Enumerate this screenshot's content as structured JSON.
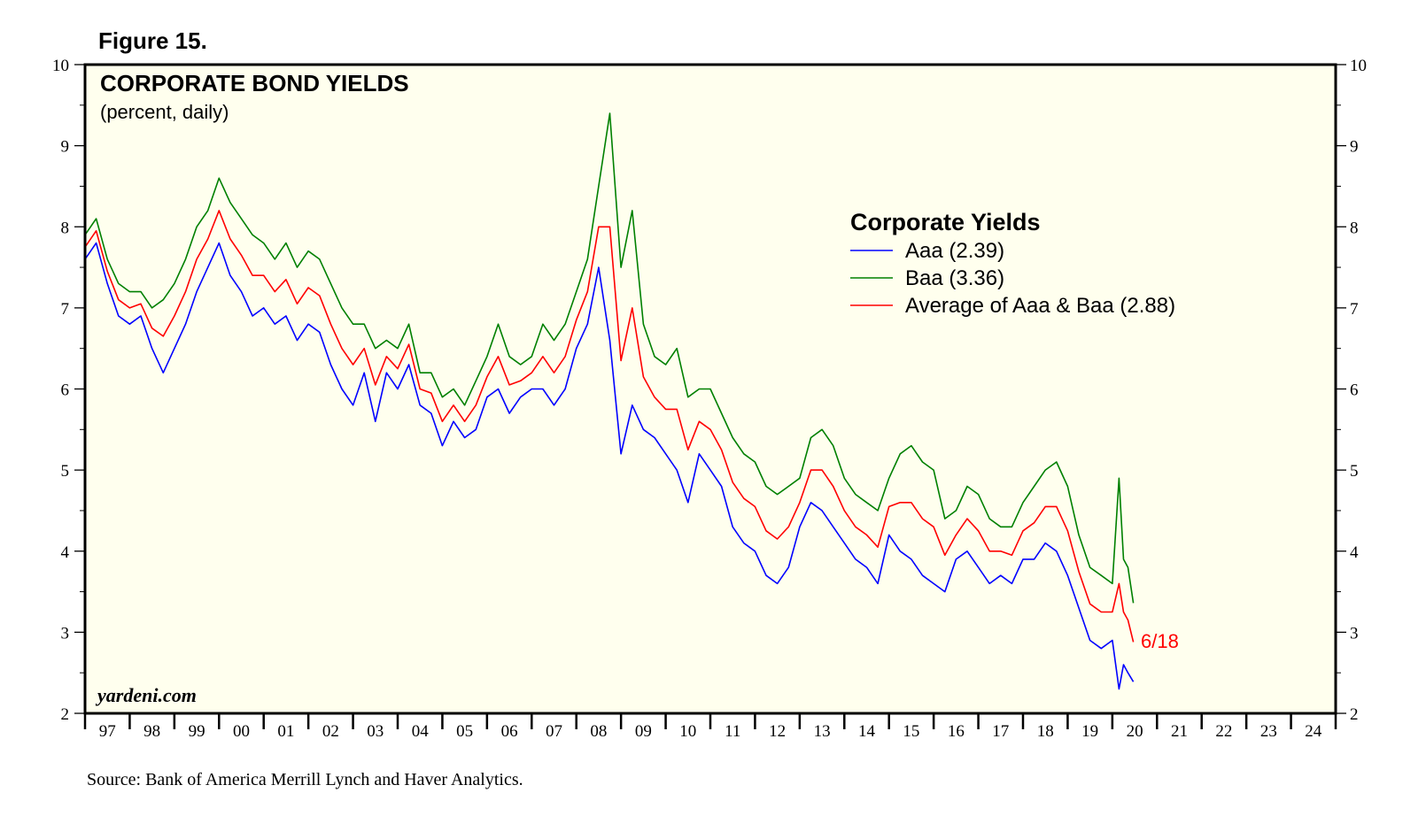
{
  "figure_label": "Figure 15.",
  "source": "Source: Bank of America Merrill Lynch and Haver Analytics.",
  "watermark": "yardeni.com",
  "colors": {
    "background": "#ffffee",
    "aaa": "#0000ff",
    "baa": "#008000",
    "avg": "#ff0000",
    "axis": "#000000"
  },
  "chart_data": {
    "type": "line",
    "title": "CORPORATE BOND YIELDS",
    "subtitle": "(percent, daily)",
    "xlabel": "",
    "ylabel": "",
    "ylim": [
      2,
      10
    ],
    "xlim": [
      1997,
      2025
    ],
    "y_ticks": [
      2,
      3,
      4,
      5,
      6,
      7,
      8,
      9,
      10
    ],
    "x_tick_labels": [
      "97",
      "98",
      "99",
      "00",
      "01",
      "02",
      "03",
      "04",
      "05",
      "06",
      "07",
      "08",
      "09",
      "10",
      "11",
      "12",
      "13",
      "14",
      "15",
      "16",
      "17",
      "18",
      "19",
      "20",
      "21",
      "22",
      "23",
      "24"
    ],
    "legend": {
      "title": "Corporate Yields",
      "placement": "top-right"
    },
    "end_label": "6/18",
    "series": [
      {
        "name": "Aaa (2.39)",
        "color": "#0000ff",
        "x": [
          1997.0,
          1997.25,
          1997.5,
          1997.75,
          1998.0,
          1998.25,
          1998.5,
          1998.75,
          1999.0,
          1999.25,
          1999.5,
          1999.75,
          2000.0,
          2000.25,
          2000.5,
          2000.75,
          2001.0,
          2001.25,
          2001.5,
          2001.75,
          2002.0,
          2002.25,
          2002.5,
          2002.75,
          2003.0,
          2003.25,
          2003.5,
          2003.75,
          2004.0,
          2004.25,
          2004.5,
          2004.75,
          2005.0,
          2005.25,
          2005.5,
          2005.75,
          2006.0,
          2006.25,
          2006.5,
          2006.75,
          2007.0,
          2007.25,
          2007.5,
          2007.75,
          2008.0,
          2008.25,
          2008.5,
          2008.75,
          2009.0,
          2009.25,
          2009.5,
          2009.75,
          2010.0,
          2010.25,
          2010.5,
          2010.75,
          2011.0,
          2011.25,
          2011.5,
          2011.75,
          2012.0,
          2012.25,
          2012.5,
          2012.75,
          2013.0,
          2013.25,
          2013.5,
          2013.75,
          2014.0,
          2014.25,
          2014.5,
          2014.75,
          2015.0,
          2015.25,
          2015.5,
          2015.75,
          2016.0,
          2016.25,
          2016.5,
          2016.75,
          2017.0,
          2017.25,
          2017.5,
          2017.75,
          2018.0,
          2018.25,
          2018.5,
          2018.75,
          2019.0,
          2019.25,
          2019.5,
          2019.75,
          2020.0,
          2020.15,
          2020.25,
          2020.35,
          2020.47
        ],
        "values": [
          7.6,
          7.8,
          7.3,
          6.9,
          6.8,
          6.9,
          6.5,
          6.2,
          6.5,
          6.8,
          7.2,
          7.5,
          7.8,
          7.4,
          7.2,
          6.9,
          7.0,
          6.8,
          6.9,
          6.6,
          6.8,
          6.7,
          6.3,
          6.0,
          5.8,
          6.2,
          5.6,
          6.2,
          6.0,
          6.3,
          5.8,
          5.7,
          5.3,
          5.6,
          5.4,
          5.5,
          5.9,
          6.0,
          5.7,
          5.9,
          6.0,
          6.0,
          5.8,
          6.0,
          6.5,
          6.8,
          7.5,
          6.6,
          5.2,
          5.8,
          5.5,
          5.4,
          5.2,
          5.0,
          4.6,
          5.2,
          5.0,
          4.8,
          4.3,
          4.1,
          4.0,
          3.7,
          3.6,
          3.8,
          4.3,
          4.6,
          4.5,
          4.3,
          4.1,
          3.9,
          3.8,
          3.6,
          4.2,
          4.0,
          3.9,
          3.7,
          3.6,
          3.5,
          3.9,
          4.0,
          3.8,
          3.6,
          3.7,
          3.6,
          3.9,
          3.9,
          4.1,
          4.0,
          3.7,
          3.3,
          2.9,
          2.8,
          2.9,
          2.3,
          2.6,
          2.5,
          2.39
        ]
      },
      {
        "name": "Baa (3.36)",
        "color": "#008000",
        "x": [
          1997.0,
          1997.25,
          1997.5,
          1997.75,
          1998.0,
          1998.25,
          1998.5,
          1998.75,
          1999.0,
          1999.25,
          1999.5,
          1999.75,
          2000.0,
          2000.25,
          2000.5,
          2000.75,
          2001.0,
          2001.25,
          2001.5,
          2001.75,
          2002.0,
          2002.25,
          2002.5,
          2002.75,
          2003.0,
          2003.25,
          2003.5,
          2003.75,
          2004.0,
          2004.25,
          2004.5,
          2004.75,
          2005.0,
          2005.25,
          2005.5,
          2005.75,
          2006.0,
          2006.25,
          2006.5,
          2006.75,
          2007.0,
          2007.25,
          2007.5,
          2007.75,
          2008.0,
          2008.25,
          2008.5,
          2008.75,
          2009.0,
          2009.25,
          2009.5,
          2009.75,
          2010.0,
          2010.25,
          2010.5,
          2010.75,
          2011.0,
          2011.25,
          2011.5,
          2011.75,
          2012.0,
          2012.25,
          2012.5,
          2012.75,
          2013.0,
          2013.25,
          2013.5,
          2013.75,
          2014.0,
          2014.25,
          2014.5,
          2014.75,
          2015.0,
          2015.25,
          2015.5,
          2015.75,
          2016.0,
          2016.25,
          2016.5,
          2016.75,
          2017.0,
          2017.25,
          2017.5,
          2017.75,
          2018.0,
          2018.25,
          2018.5,
          2018.75,
          2019.0,
          2019.25,
          2019.5,
          2019.75,
          2020.0,
          2020.15,
          2020.25,
          2020.35,
          2020.47
        ],
        "values": [
          7.9,
          8.1,
          7.6,
          7.3,
          7.2,
          7.2,
          7.0,
          7.1,
          7.3,
          7.6,
          8.0,
          8.2,
          8.6,
          8.3,
          8.1,
          7.9,
          7.8,
          7.6,
          7.8,
          7.5,
          7.7,
          7.6,
          7.3,
          7.0,
          6.8,
          6.8,
          6.5,
          6.6,
          6.5,
          6.8,
          6.2,
          6.2,
          5.9,
          6.0,
          5.8,
          6.1,
          6.4,
          6.8,
          6.4,
          6.3,
          6.4,
          6.8,
          6.6,
          6.8,
          7.2,
          7.6,
          8.5,
          9.4,
          7.5,
          8.2,
          6.8,
          6.4,
          6.3,
          6.5,
          5.9,
          6.0,
          6.0,
          5.7,
          5.4,
          5.2,
          5.1,
          4.8,
          4.7,
          4.8,
          4.9,
          5.4,
          5.5,
          5.3,
          4.9,
          4.7,
          4.6,
          4.5,
          4.9,
          5.2,
          5.3,
          5.1,
          5.0,
          4.4,
          4.5,
          4.8,
          4.7,
          4.4,
          4.3,
          4.3,
          4.6,
          4.8,
          5.0,
          5.1,
          4.8,
          4.2,
          3.8,
          3.7,
          3.6,
          4.9,
          3.9,
          3.8,
          3.36
        ]
      },
      {
        "name": "Average of Aaa & Baa (2.88)",
        "color": "#ff0000",
        "x": [
          1997.0,
          1997.25,
          1997.5,
          1997.75,
          1998.0,
          1998.25,
          1998.5,
          1998.75,
          1999.0,
          1999.25,
          1999.5,
          1999.75,
          2000.0,
          2000.25,
          2000.5,
          2000.75,
          2001.0,
          2001.25,
          2001.5,
          2001.75,
          2002.0,
          2002.25,
          2002.5,
          2002.75,
          2003.0,
          2003.25,
          2003.5,
          2003.75,
          2004.0,
          2004.25,
          2004.5,
          2004.75,
          2005.0,
          2005.25,
          2005.5,
          2005.75,
          2006.0,
          2006.25,
          2006.5,
          2006.75,
          2007.0,
          2007.25,
          2007.5,
          2007.75,
          2008.0,
          2008.25,
          2008.5,
          2008.75,
          2009.0,
          2009.25,
          2009.5,
          2009.75,
          2010.0,
          2010.25,
          2010.5,
          2010.75,
          2011.0,
          2011.25,
          2011.5,
          2011.75,
          2012.0,
          2012.25,
          2012.5,
          2012.75,
          2013.0,
          2013.25,
          2013.5,
          2013.75,
          2014.0,
          2014.25,
          2014.5,
          2014.75,
          2015.0,
          2015.25,
          2015.5,
          2015.75,
          2016.0,
          2016.25,
          2016.5,
          2016.75,
          2017.0,
          2017.25,
          2017.5,
          2017.75,
          2018.0,
          2018.25,
          2018.5,
          2018.75,
          2019.0,
          2019.25,
          2019.5,
          2019.75,
          2020.0,
          2020.15,
          2020.25,
          2020.35,
          2020.47
        ],
        "values": [
          7.75,
          7.95,
          7.45,
          7.1,
          7.0,
          7.05,
          6.75,
          6.65,
          6.9,
          7.2,
          7.6,
          7.85,
          8.2,
          7.85,
          7.65,
          7.4,
          7.4,
          7.2,
          7.35,
          7.05,
          7.25,
          7.15,
          6.8,
          6.5,
          6.3,
          6.5,
          6.05,
          6.4,
          6.25,
          6.55,
          6.0,
          5.95,
          5.6,
          5.8,
          5.6,
          5.8,
          6.15,
          6.4,
          6.05,
          6.1,
          6.2,
          6.4,
          6.2,
          6.4,
          6.85,
          7.2,
          8.0,
          8.0,
          6.35,
          7.0,
          6.15,
          5.9,
          5.75,
          5.75,
          5.25,
          5.6,
          5.5,
          5.25,
          4.85,
          4.65,
          4.55,
          4.25,
          4.15,
          4.3,
          4.6,
          5.0,
          5.0,
          4.8,
          4.5,
          4.3,
          4.2,
          4.05,
          4.55,
          4.6,
          4.6,
          4.4,
          4.3,
          3.95,
          4.2,
          4.4,
          4.25,
          4.0,
          4.0,
          3.95,
          4.25,
          4.35,
          4.55,
          4.55,
          4.25,
          3.75,
          3.35,
          3.25,
          3.25,
          3.6,
          3.25,
          3.15,
          2.88
        ]
      }
    ]
  }
}
